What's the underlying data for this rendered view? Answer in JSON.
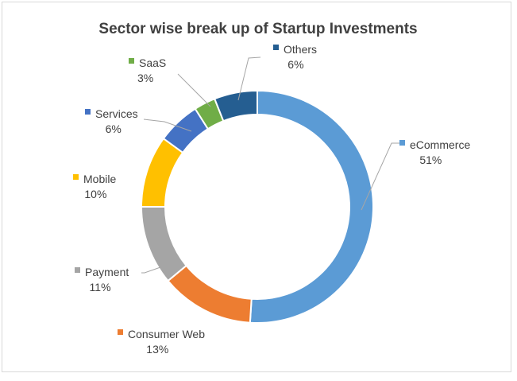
{
  "chart_data": {
    "type": "pie",
    "variant": "doughnut",
    "title": "Sector wise break up of Startup Investments",
    "legend": "none",
    "slices": [
      {
        "name": "eCommerce",
        "value": 51,
        "label": "51%",
        "color": "#5b9bd5"
      },
      {
        "name": "Consumer Web",
        "value": 13,
        "label": "13%",
        "color": "#ed7d31"
      },
      {
        "name": "Payment",
        "value": 11,
        "label": "11%",
        "color": "#a5a5a5"
      },
      {
        "name": "Mobile",
        "value": 10,
        "label": "10%",
        "color": "#ffc000"
      },
      {
        "name": "Services",
        "value": 6,
        "label": "6%",
        "color": "#4472c4"
      },
      {
        "name": "SaaS",
        "value": 3,
        "label": "3%",
        "color": "#70ad47"
      },
      {
        "name": "Others",
        "value": 6,
        "label": "6%",
        "color": "#255e91"
      }
    ]
  }
}
